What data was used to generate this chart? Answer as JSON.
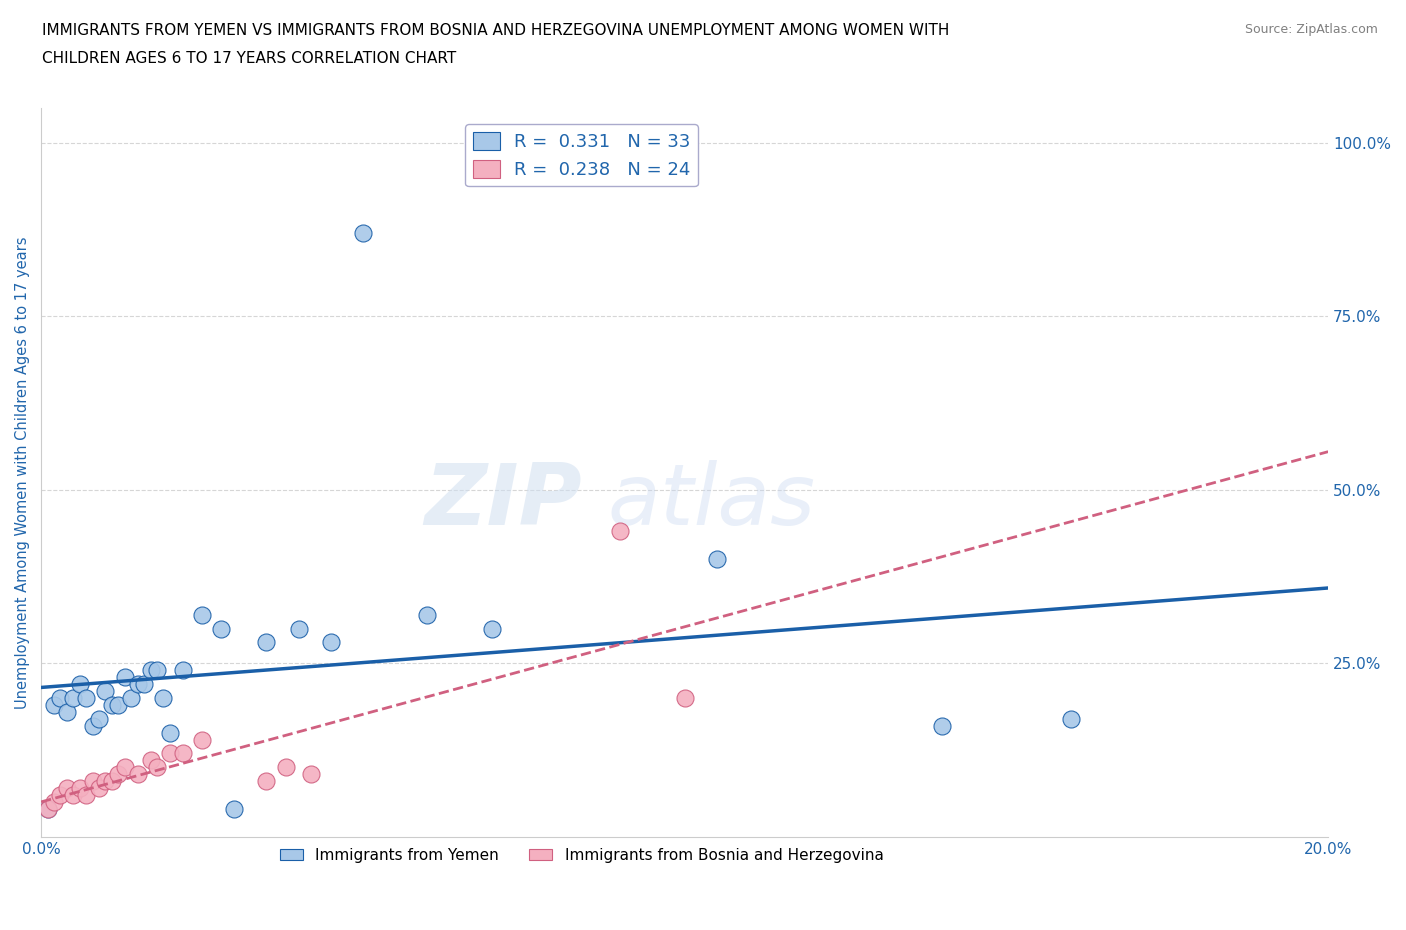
{
  "title_line1": "IMMIGRANTS FROM YEMEN VS IMMIGRANTS FROM BOSNIA AND HERZEGOVINA UNEMPLOYMENT AMONG WOMEN WITH",
  "title_line2": "CHILDREN AGES 6 TO 17 YEARS CORRELATION CHART",
  "source_text": "Source: ZipAtlas.com",
  "ylabel": "Unemployment Among Women with Children Ages 6 to 17 years",
  "xlim": [
    0.0,
    0.2
  ],
  "ylim": [
    0.0,
    1.05
  ],
  "xticks": [
    0.0,
    0.05,
    0.1,
    0.15,
    0.2
  ],
  "xtick_labels": [
    "0.0%",
    "",
    "",
    "",
    "20.0%"
  ],
  "yticks_right": [
    0.0,
    0.25,
    0.5,
    0.75,
    1.0
  ],
  "ytick_labels_right": [
    "",
    "25.0%",
    "50.0%",
    "75.0%",
    "100.0%"
  ],
  "legend1_label": "Immigrants from Yemen",
  "legend2_label": "Immigrants from Bosnia and Herzegovina",
  "r1": 0.331,
  "n1": 33,
  "r2": 0.238,
  "n2": 24,
  "blue_color": "#a8c8e8",
  "pink_color": "#f4b0c0",
  "blue_line_color": "#1a5fa8",
  "pink_line_color": "#d06080",
  "blue_x": [
    0.001,
    0.002,
    0.003,
    0.004,
    0.005,
    0.006,
    0.007,
    0.008,
    0.009,
    0.01,
    0.011,
    0.012,
    0.013,
    0.014,
    0.015,
    0.016,
    0.017,
    0.018,
    0.019,
    0.02,
    0.022,
    0.025,
    0.028,
    0.03,
    0.035,
    0.04,
    0.045,
    0.05,
    0.06,
    0.07,
    0.105,
    0.14,
    0.16
  ],
  "blue_y": [
    0.04,
    0.19,
    0.2,
    0.18,
    0.2,
    0.22,
    0.2,
    0.16,
    0.17,
    0.21,
    0.19,
    0.19,
    0.23,
    0.2,
    0.22,
    0.22,
    0.24,
    0.24,
    0.2,
    0.15,
    0.24,
    0.32,
    0.3,
    0.04,
    0.28,
    0.3,
    0.28,
    0.87,
    0.32,
    0.3,
    0.4,
    0.16,
    0.17
  ],
  "pink_x": [
    0.001,
    0.002,
    0.003,
    0.004,
    0.005,
    0.006,
    0.007,
    0.008,
    0.009,
    0.01,
    0.011,
    0.012,
    0.013,
    0.015,
    0.017,
    0.018,
    0.02,
    0.022,
    0.025,
    0.035,
    0.038,
    0.042,
    0.09,
    0.1
  ],
  "pink_y": [
    0.04,
    0.05,
    0.06,
    0.07,
    0.06,
    0.07,
    0.06,
    0.08,
    0.07,
    0.08,
    0.08,
    0.09,
    0.1,
    0.09,
    0.11,
    0.1,
    0.12,
    0.12,
    0.14,
    0.08,
    0.1,
    0.09,
    0.44,
    0.2
  ]
}
